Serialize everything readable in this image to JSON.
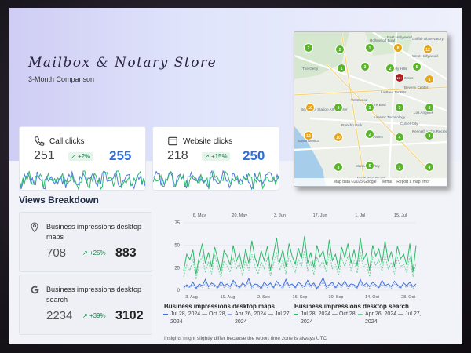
{
  "header": {
    "title": "Mailbox & Notary Store",
    "subtitle": "3-Month Comparison"
  },
  "map": {
    "labels": [
      "East Hollywood",
      "West Hollywood",
      "Beverly Hills",
      "The Grove",
      "Culver City",
      "Santa Monica",
      "Westwood",
      "Hollywood Bowl",
      "Bergamot Station Arts Center",
      "Manhattan Beach",
      "Los Angeles",
      "Marina del Rey",
      "Beverly Center",
      "Jurassic Technology",
      "Kenneth Hahn Recreation Area",
      "The Getty",
      "Wilshire Blvd",
      "Griffith Observatory",
      "La Brea Tar Pits",
      "Rancho Park",
      "Palms"
    ],
    "footer": [
      "Map data ©2025 Google",
      "Terms",
      "Report a map error"
    ],
    "pins": [
      {
        "v": "2",
        "c": "#5ab42c"
      },
      {
        "v": "2",
        "c": "#5ab42c"
      },
      {
        "v": "1",
        "c": "#5ab42c"
      },
      {
        "v": "8",
        "c": "#e6a516"
      },
      {
        "v": "12",
        "c": "#e6a516"
      },
      {
        "v": "1",
        "c": "#5ab42c"
      },
      {
        "v": "3",
        "c": "#5ab42c"
      },
      {
        "v": "2",
        "c": "#5ab42c"
      },
      {
        "v": "5",
        "c": "#5ab42c"
      },
      {
        "v": "6",
        "c": "#e6a516"
      },
      {
        "v": "20+",
        "c": "#b01c1c"
      },
      {
        "v": "10",
        "c": "#e6a516"
      },
      {
        "v": "5",
        "c": "#5ab42c"
      },
      {
        "v": "3",
        "c": "#5ab42c"
      },
      {
        "v": "3",
        "c": "#5ab42c"
      },
      {
        "v": "3",
        "c": "#5ab42c"
      },
      {
        "v": "12",
        "c": "#e6a516"
      },
      {
        "v": "10",
        "c": "#e6a516"
      },
      {
        "v": "2",
        "c": "#5ab42c"
      },
      {
        "v": "4",
        "c": "#5ab42c"
      },
      {
        "v": "3",
        "c": "#5ab42c"
      },
      {
        "v": "3",
        "c": "#5ab42c"
      },
      {
        "v": "5",
        "c": "#5ab42c"
      },
      {
        "v": "3",
        "c": "#5ab42c"
      },
      {
        "v": "4",
        "c": "#5ab42c"
      }
    ]
  },
  "metrics": [
    {
      "label": "Call clicks",
      "old": "251",
      "change": "+2%",
      "new": "255",
      "icon": "phone-icon"
    },
    {
      "label": "Website clicks",
      "old": "218",
      "change": "+15%",
      "new": "250",
      "icon": "browser-icon"
    }
  ],
  "views": {
    "title": "Views Breakdown",
    "cards": [
      {
        "label": "Business impressions desktop maps",
        "old": "708",
        "change": "+25%",
        "new": "883",
        "icon": "map-pin-icon"
      },
      {
        "label": "Business impressions desktop search",
        "old": "2234",
        "change": "+39%",
        "new": "3102",
        "icon": "google-g-icon"
      }
    ],
    "legend": [
      {
        "title": "Business impressions desktop maps",
        "current": "Jul 28, 2024 — Oct 28, 2024",
        "previous": "Apr 26, 2024 — Jul 27, 2024"
      },
      {
        "title": "Business impressions desktop search",
        "current": "Jul 28, 2024 — Oct 28, 2024",
        "previous": "Apr 26, 2024 — Jul 27, 2024"
      }
    ],
    "note": "Insights might slightly differ because the report time zone is always UTC"
  },
  "colors": {
    "maps": "#3f6fd8",
    "search": "#2fb96a",
    "accent": "#2f6fd6",
    "positive": "#1a7f4b"
  },
  "chart_data": {
    "type": "line",
    "top_x_ticks": [
      "6. May",
      "20. May",
      "3. Jun",
      "17. Jun",
      "1. Jul",
      "15. Jul"
    ],
    "bottom_x_ticks": [
      "3. Aug",
      "19. Aug",
      "2. Sep",
      "16. Sep",
      "30. Sep",
      "14. Oct",
      "28. Oct"
    ],
    "y_ticks": [
      0,
      25,
      50,
      75
    ],
    "ylim": [
      0,
      75
    ],
    "series": [
      {
        "name": "Business impressions desktop search",
        "style": "solid",
        "color": "#2fb96a",
        "values": [
          22,
          40,
          34,
          45,
          18,
          37,
          52,
          30,
          42,
          26,
          48,
          35,
          20,
          44,
          38,
          28,
          50,
          32,
          41,
          24,
          46,
          30,
          55,
          36,
          27,
          44,
          33,
          49,
          22,
          40,
          58,
          31,
          45,
          26,
          52,
          38,
          29,
          47,
          35,
          60,
          30,
          42,
          25,
          50,
          37,
          44,
          28,
          56,
          33,
          40,
          24,
          48,
          36,
          52,
          30,
          45,
          27,
          58,
          34,
          41,
          22,
          50,
          38,
          46,
          29,
          55,
          32,
          43,
          26,
          49,
          35,
          40,
          28,
          52,
          20,
          50
        ]
      },
      {
        "name": "Business impressions desktop search (previous)",
        "style": "dashed",
        "color": "#6fd09a",
        "values": [
          15,
          28,
          22,
          35,
          12,
          30,
          38,
          20,
          32,
          18,
          40,
          26,
          14,
          33,
          27,
          20,
          36,
          24,
          30,
          16,
          34,
          22,
          40,
          26,
          18,
          32,
          24,
          36,
          16,
          30,
          42,
          22,
          33,
          18,
          38,
          28,
          20,
          35,
          26,
          44,
          22,
          31,
          17,
          37,
          27,
          33,
          20,
          41,
          24,
          29,
          16,
          36,
          26,
          38,
          22,
          33,
          19,
          43,
          25,
          30,
          15,
          37,
          28,
          34,
          21,
          40,
          23,
          31,
          18,
          36,
          26,
          29,
          20,
          38,
          15,
          30
        ]
      },
      {
        "name": "Business impressions desktop maps",
        "style": "solid",
        "color": "#3f6fd8",
        "values": [
          3,
          6,
          4,
          9,
          2,
          7,
          5,
          12,
          4,
          8,
          6,
          3,
          10,
          5,
          7,
          4,
          11,
          6,
          3,
          8,
          5,
          13,
          4,
          7,
          6,
          2,
          9,
          5,
          8,
          3,
          10,
          6,
          4,
          12,
          5,
          7,
          3,
          9,
          6,
          4,
          11,
          5,
          8,
          2,
          7,
          14,
          4,
          6,
          9,
          3,
          8,
          5,
          10,
          4,
          7,
          6,
          3,
          12,
          5,
          8,
          4,
          9,
          6,
          3,
          11,
          5,
          7,
          4,
          10,
          6,
          3,
          8,
          5,
          9,
          4,
          7
        ]
      },
      {
        "name": "Business impressions desktop maps (previous)",
        "style": "dashed",
        "color": "#8fa9e6",
        "values": [
          2,
          4,
          3,
          6,
          1,
          5,
          3,
          8,
          2,
          6,
          4,
          2,
          7,
          3,
          5,
          2,
          8,
          4,
          2,
          6,
          3,
          9,
          2,
          5,
          4,
          1,
          6,
          3,
          5,
          2,
          7,
          4,
          2,
          8,
          3,
          5,
          2,
          6,
          4,
          2,
          7,
          3,
          6,
          1,
          5,
          9,
          2,
          4,
          6,
          2,
          5,
          3,
          7,
          2,
          5,
          4,
          2,
          8,
          3,
          5,
          2,
          6,
          4,
          2,
          7,
          3,
          5,
          2,
          7,
          4,
          2,
          5,
          3,
          6,
          2,
          5
        ]
      }
    ]
  }
}
